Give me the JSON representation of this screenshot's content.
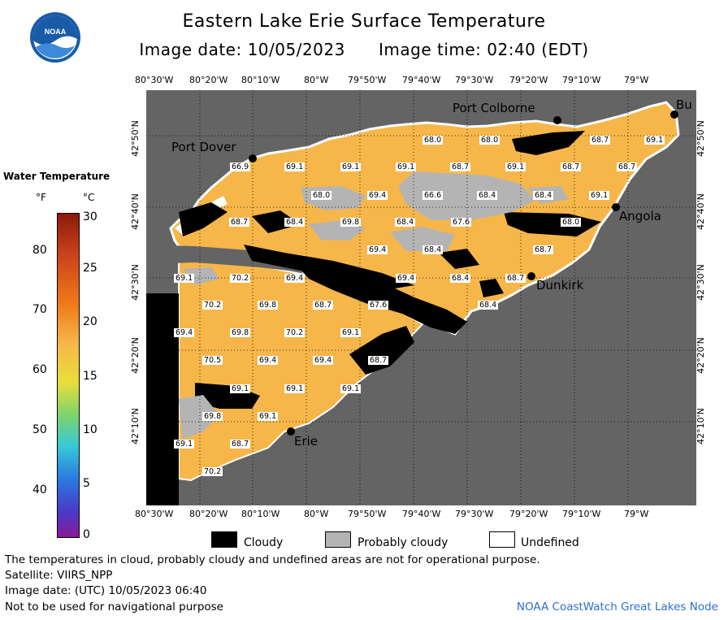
{
  "title": "Eastern Lake Erie Surface Temperature",
  "subtitle": "Image date: 10/05/2023      Image time: 02:40 (EDT)",
  "logo_text": "NOAA",
  "colors": {
    "land": "#646464",
    "water": "#f6b64a",
    "cloudy": "#000000",
    "probably_cloudy": "#b4b4b4",
    "undefined": "#ffffff",
    "credit": "#2a6fd6"
  },
  "map": {
    "lon_ticks_top": [
      "80°30'W",
      "80°20'W",
      "80°10'W",
      "80°W",
      "79°50'W",
      "79°40'W",
      "79°30'W",
      "79°20'W",
      "79°10'W",
      "79°W"
    ],
    "lon_ticks_bottom": [
      "80°30'W",
      "80°20'W",
      "80°10'W",
      "80°W",
      "79°50'W",
      "79°40'W",
      "79°30'W",
      "79°20'W",
      "79°10'W",
      "79°W"
    ],
    "lat_ticks_left": [
      "42°50'N",
      "42°40'N",
      "42°30'N",
      "42°20'N",
      "42°10'N"
    ],
    "lat_ticks_right": [
      "42°50'N",
      "42°40'N",
      "42°30'N",
      "42°20'N",
      "42°10'N"
    ],
    "cities": [
      "Port Colborne",
      "Bu",
      "Port Dover",
      "Angola",
      "Dunkirk",
      "Erie"
    ],
    "temperature_labels": [
      "68.0",
      "68.0",
      "68.7",
      "69.1",
      "66.9",
      "69.1",
      "69.1",
      "69.1",
      "68.7",
      "69.1",
      "68.7",
      "68.7",
      "68.0",
      "69.4",
      "66.6",
      "68.4",
      "68.4",
      "69.1",
      "68.7",
      "68.4",
      "69.8",
      "68.4",
      "67.6",
      "68.0",
      "69.4",
      "68.4",
      "68.7",
      "69.1",
      "70.2",
      "69.4",
      "69.4",
      "68.4",
      "68.7",
      "70.2",
      "69.8",
      "68.7",
      "67.6",
      "68.4",
      "69.4",
      "69.8",
      "70.2",
      "69.1",
      "70.5",
      "69.4",
      "69.4",
      "68.7",
      "69.1",
      "69.1",
      "69.1",
      "69.8",
      "69.1",
      "69.1",
      "68.7",
      "70.2"
    ]
  },
  "legend": {
    "title": "Water Temperature",
    "unit_f": "°F",
    "unit_c": "°C",
    "f_ticks": [
      "80",
      "70",
      "60",
      "50",
      "40"
    ],
    "c_ticks": [
      "30",
      "25",
      "20",
      "15",
      "10",
      "5",
      "0"
    ],
    "f_range": [
      32,
      86
    ],
    "c_range": [
      0,
      30
    ]
  },
  "key": {
    "cloudy": "Cloudy",
    "probably_cloudy": "Probably cloudy",
    "undefined": "Undefined"
  },
  "footer": {
    "line1": "The temperatures in cloud, probably cloudy and undefined areas are not for operational purpose.",
    "line2": "Satellite: VIIRS_NPP",
    "line3": "Image date: (UTC) 10/05/2023  06:40",
    "line4": "Not to be used for navigational purpose",
    "credit": "NOAA CoastWatch Great Lakes Node"
  }
}
